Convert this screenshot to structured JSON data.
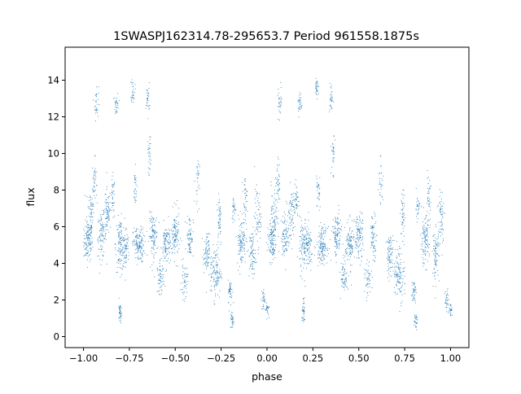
{
  "chart_data": {
    "type": "scatter",
    "title": "1SWASPJ162314.78-295653.7 Period 961558.1875s",
    "xlabel": "phase",
    "ylabel": "flux",
    "xlim": [
      -1.1,
      1.1
    ],
    "ylim": [
      -0.6,
      15.8
    ],
    "xticks": [
      -1.0,
      -0.75,
      -0.5,
      -0.25,
      0.0,
      0.25,
      0.5,
      0.75,
      1.0
    ],
    "xtick_labels": [
      "−1.00",
      "−0.75",
      "−0.50",
      "−0.25",
      "0.00",
      "0.25",
      "0.50",
      "0.75",
      "1.00"
    ],
    "yticks": [
      0,
      2,
      4,
      6,
      8,
      10,
      12,
      14
    ],
    "ytick_labels": [
      "0",
      "2",
      "4",
      "6",
      "8",
      "10",
      "12",
      "14"
    ],
    "grid": false,
    "legend": "none",
    "series_color": "#1f77b4",
    "point_groups": [
      {
        "x": -0.975,
        "y": 5.2,
        "spread_x": 0.02,
        "spread_y": 0.9,
        "n": 120
      },
      {
        "x": -0.96,
        "y": 6.8,
        "spread_x": 0.015,
        "spread_y": 1.3,
        "n": 60
      },
      {
        "x": -0.94,
        "y": 8.5,
        "spread_x": 0.01,
        "spread_y": 1.0,
        "n": 40
      },
      {
        "x": -0.93,
        "y": 12.8,
        "spread_x": 0.01,
        "spread_y": 0.8,
        "n": 30
      },
      {
        "x": -0.9,
        "y": 5.5,
        "spread_x": 0.02,
        "spread_y": 1.0,
        "n": 90
      },
      {
        "x": -0.87,
        "y": 6.8,
        "spread_x": 0.015,
        "spread_y": 1.1,
        "n": 70
      },
      {
        "x": -0.84,
        "y": 7.5,
        "spread_x": 0.01,
        "spread_y": 1.0,
        "n": 40
      },
      {
        "x": -0.82,
        "y": 12.7,
        "spread_x": 0.01,
        "spread_y": 0.5,
        "n": 30
      },
      {
        "x": -0.8,
        "y": 5.0,
        "spread_x": 0.02,
        "spread_y": 1.2,
        "n": 120
      },
      {
        "x": -0.8,
        "y": 1.3,
        "spread_x": 0.008,
        "spread_y": 0.5,
        "n": 40
      },
      {
        "x": -0.77,
        "y": 4.8,
        "spread_x": 0.015,
        "spread_y": 1.0,
        "n": 60
      },
      {
        "x": -0.73,
        "y": 13.5,
        "spread_x": 0.008,
        "spread_y": 0.6,
        "n": 30
      },
      {
        "x": -0.72,
        "y": 8.0,
        "spread_x": 0.01,
        "spread_y": 1.0,
        "n": 30
      },
      {
        "x": -0.7,
        "y": 5.0,
        "spread_x": 0.025,
        "spread_y": 0.8,
        "n": 140
      },
      {
        "x": -0.65,
        "y": 13.0,
        "spread_x": 0.008,
        "spread_y": 0.7,
        "n": 30
      },
      {
        "x": -0.64,
        "y": 10.0,
        "spread_x": 0.008,
        "spread_y": 0.9,
        "n": 30
      },
      {
        "x": -0.62,
        "y": 5.5,
        "spread_x": 0.02,
        "spread_y": 1.0,
        "n": 110
      },
      {
        "x": -0.58,
        "y": 3.2,
        "spread_x": 0.015,
        "spread_y": 0.7,
        "n": 60
      },
      {
        "x": -0.55,
        "y": 5.0,
        "spread_x": 0.02,
        "spread_y": 1.0,
        "n": 110
      },
      {
        "x": -0.5,
        "y": 5.5,
        "spread_x": 0.02,
        "spread_y": 1.1,
        "n": 110
      },
      {
        "x": -0.45,
        "y": 3.0,
        "spread_x": 0.015,
        "spread_y": 0.8,
        "n": 50
      },
      {
        "x": -0.42,
        "y": 5.5,
        "spread_x": 0.015,
        "spread_y": 1.0,
        "n": 70
      },
      {
        "x": -0.38,
        "y": 8.5,
        "spread_x": 0.01,
        "spread_y": 1.2,
        "n": 30
      },
      {
        "x": -0.33,
        "y": 4.5,
        "spread_x": 0.015,
        "spread_y": 0.9,
        "n": 80
      },
      {
        "x": -0.28,
        "y": 3.5,
        "spread_x": 0.025,
        "spread_y": 1.2,
        "n": 120
      },
      {
        "x": -0.26,
        "y": 6.5,
        "spread_x": 0.01,
        "spread_y": 1.3,
        "n": 50
      },
      {
        "x": -0.2,
        "y": 2.5,
        "spread_x": 0.01,
        "spread_y": 0.5,
        "n": 40
      },
      {
        "x": -0.19,
        "y": 0.9,
        "spread_x": 0.008,
        "spread_y": 0.4,
        "n": 30
      },
      {
        "x": -0.18,
        "y": 7.0,
        "spread_x": 0.01,
        "spread_y": 0.6,
        "n": 30
      },
      {
        "x": -0.14,
        "y": 5.2,
        "spread_x": 0.02,
        "spread_y": 1.1,
        "n": 110
      },
      {
        "x": -0.12,
        "y": 7.5,
        "spread_x": 0.01,
        "spread_y": 1.0,
        "n": 40
      },
      {
        "x": -0.08,
        "y": 4.5,
        "spread_x": 0.015,
        "spread_y": 1.2,
        "n": 80
      },
      {
        "x": -0.05,
        "y": 6.5,
        "spread_x": 0.015,
        "spread_y": 1.3,
        "n": 60
      },
      {
        "x": -0.02,
        "y": 2.0,
        "spread_x": 0.01,
        "spread_y": 0.6,
        "n": 30
      },
      {
        "x": 0.0,
        "y": 1.5,
        "spread_x": 0.008,
        "spread_y": 0.3,
        "n": 25
      },
      {
        "x": 0.025,
        "y": 5.2,
        "spread_x": 0.02,
        "spread_y": 0.9,
        "n": 120
      },
      {
        "x": 0.04,
        "y": 6.8,
        "spread_x": 0.015,
        "spread_y": 1.3,
        "n": 60
      },
      {
        "x": 0.06,
        "y": 8.5,
        "spread_x": 0.01,
        "spread_y": 1.0,
        "n": 40
      },
      {
        "x": 0.07,
        "y": 12.8,
        "spread_x": 0.01,
        "spread_y": 0.8,
        "n": 30
      },
      {
        "x": 0.1,
        "y": 5.5,
        "spread_x": 0.02,
        "spread_y": 1.0,
        "n": 90
      },
      {
        "x": 0.13,
        "y": 6.8,
        "spread_x": 0.015,
        "spread_y": 1.1,
        "n": 70
      },
      {
        "x": 0.16,
        "y": 7.5,
        "spread_x": 0.01,
        "spread_y": 1.0,
        "n": 40
      },
      {
        "x": 0.18,
        "y": 12.7,
        "spread_x": 0.01,
        "spread_y": 0.5,
        "n": 30
      },
      {
        "x": 0.2,
        "y": 5.0,
        "spread_x": 0.02,
        "spread_y": 1.2,
        "n": 120
      },
      {
        "x": 0.2,
        "y": 1.3,
        "spread_x": 0.008,
        "spread_y": 0.5,
        "n": 40
      },
      {
        "x": 0.23,
        "y": 4.8,
        "spread_x": 0.015,
        "spread_y": 1.0,
        "n": 60
      },
      {
        "x": 0.27,
        "y": 13.5,
        "spread_x": 0.008,
        "spread_y": 0.6,
        "n": 30
      },
      {
        "x": 0.28,
        "y": 8.0,
        "spread_x": 0.01,
        "spread_y": 1.0,
        "n": 30
      },
      {
        "x": 0.3,
        "y": 5.0,
        "spread_x": 0.025,
        "spread_y": 0.8,
        "n": 140
      },
      {
        "x": 0.35,
        "y": 13.0,
        "spread_x": 0.008,
        "spread_y": 0.7,
        "n": 30
      },
      {
        "x": 0.36,
        "y": 10.0,
        "spread_x": 0.008,
        "spread_y": 0.9,
        "n": 30
      },
      {
        "x": 0.38,
        "y": 5.5,
        "spread_x": 0.02,
        "spread_y": 1.0,
        "n": 110
      },
      {
        "x": 0.42,
        "y": 3.2,
        "spread_x": 0.015,
        "spread_y": 0.7,
        "n": 60
      },
      {
        "x": 0.45,
        "y": 5.0,
        "spread_x": 0.02,
        "spread_y": 1.0,
        "n": 110
      },
      {
        "x": 0.5,
        "y": 5.5,
        "spread_x": 0.02,
        "spread_y": 1.1,
        "n": 110
      },
      {
        "x": 0.55,
        "y": 3.0,
        "spread_x": 0.015,
        "spread_y": 0.8,
        "n": 50
      },
      {
        "x": 0.58,
        "y": 5.5,
        "spread_x": 0.015,
        "spread_y": 1.0,
        "n": 70
      },
      {
        "x": 0.62,
        "y": 8.5,
        "spread_x": 0.01,
        "spread_y": 1.2,
        "n": 30
      },
      {
        "x": 0.67,
        "y": 4.5,
        "spread_x": 0.015,
        "spread_y": 0.9,
        "n": 80
      },
      {
        "x": 0.72,
        "y": 3.5,
        "spread_x": 0.025,
        "spread_y": 1.2,
        "n": 120
      },
      {
        "x": 0.74,
        "y": 6.5,
        "spread_x": 0.01,
        "spread_y": 1.3,
        "n": 50
      },
      {
        "x": 0.8,
        "y": 2.5,
        "spread_x": 0.01,
        "spread_y": 0.5,
        "n": 40
      },
      {
        "x": 0.81,
        "y": 0.9,
        "spread_x": 0.008,
        "spread_y": 0.4,
        "n": 30
      },
      {
        "x": 0.82,
        "y": 7.0,
        "spread_x": 0.01,
        "spread_y": 0.6,
        "n": 30
      },
      {
        "x": 0.86,
        "y": 5.2,
        "spread_x": 0.02,
        "spread_y": 1.1,
        "n": 110
      },
      {
        "x": 0.88,
        "y": 7.5,
        "spread_x": 0.01,
        "spread_y": 1.0,
        "n": 40
      },
      {
        "x": 0.92,
        "y": 4.5,
        "spread_x": 0.015,
        "spread_y": 1.2,
        "n": 80
      },
      {
        "x": 0.95,
        "y": 6.5,
        "spread_x": 0.015,
        "spread_y": 1.3,
        "n": 60
      },
      {
        "x": 0.98,
        "y": 2.0,
        "spread_x": 0.01,
        "spread_y": 0.6,
        "n": 30
      },
      {
        "x": 1.0,
        "y": 1.5,
        "spread_x": 0.008,
        "spread_y": 0.3,
        "n": 25
      }
    ]
  }
}
